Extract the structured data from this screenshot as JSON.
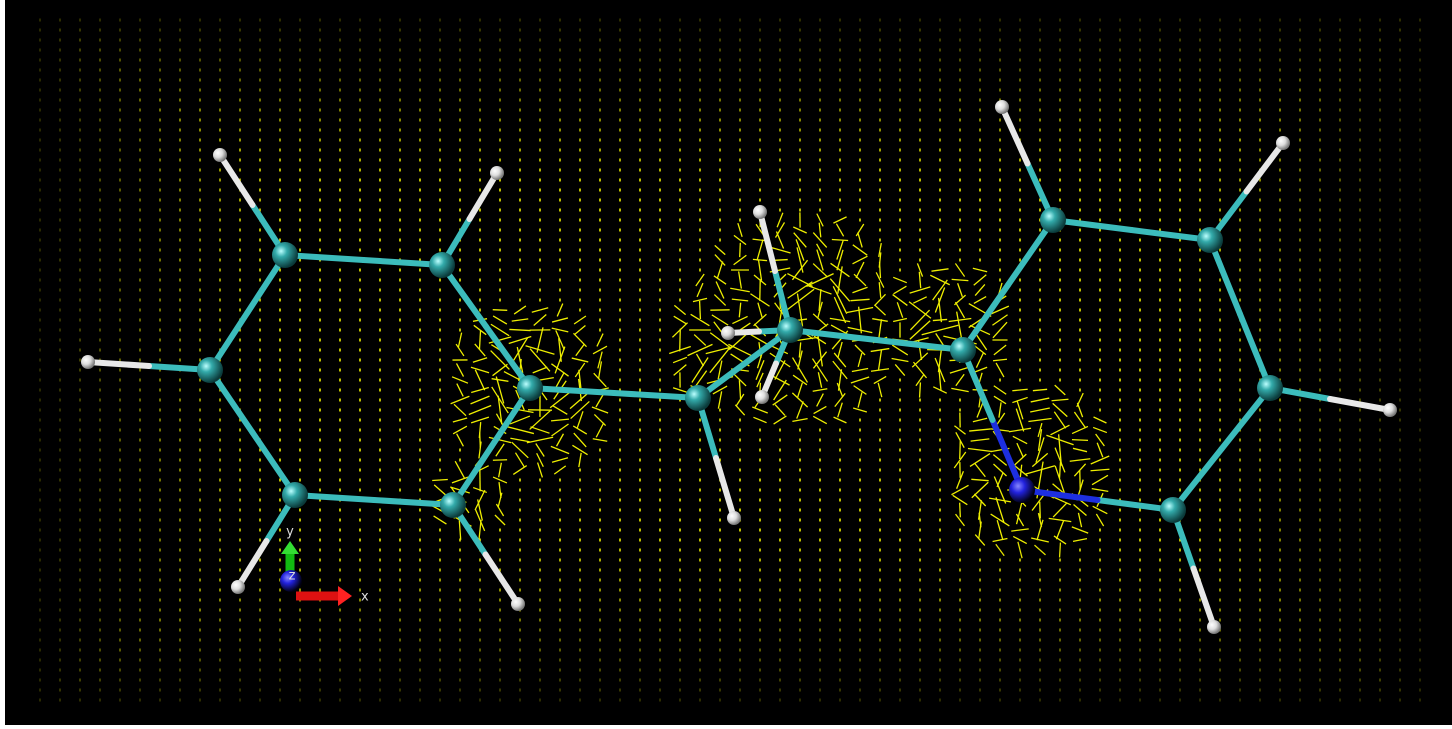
{
  "axes_indicator": {
    "x_label": "x",
    "y_label": "y",
    "z_label": "z"
  }
}
